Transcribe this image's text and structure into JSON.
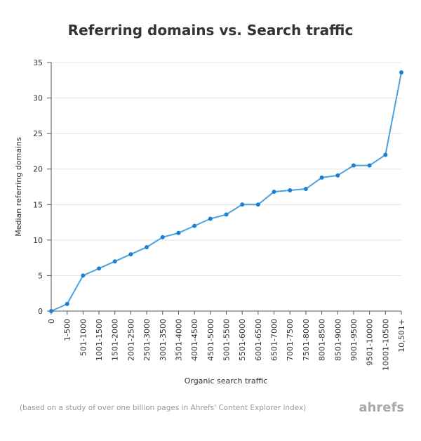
{
  "chart_data": {
    "type": "line",
    "title": "Referring domains vs. Search traffic",
    "x_label": "Organic search traffic",
    "y_label": "Median referring domains",
    "note": "(based on a study of over one billion pages in Ahrefs' Content Explorer index)",
    "brand": "ahrefs",
    "categories": [
      "0",
      "1-500",
      "501-1000",
      "1001-1500",
      "1501-2000",
      "2001-2500",
      "2501-3000",
      "3001-3500",
      "3501-4000",
      "4001-4500",
      "4501-5000",
      "5001-5500",
      "5501-6000",
      "6001-6500",
      "6501-7000",
      "7001-7500",
      "7501-8000",
      "8001-8500",
      "8501-9000",
      "9001-9500",
      "9501-10000",
      "10001-10500",
      "10,501+"
    ],
    "series": [
      {
        "color": "#4aa3df",
        "marker_color": "#1b7fd3",
        "values": [
          0,
          1,
          5,
          6,
          7,
          8,
          9,
          10.4,
          11,
          12,
          13,
          13.6,
          15,
          15,
          16.8,
          17,
          17.2,
          18.8,
          19.1,
          20.5,
          20.5,
          22,
          33.6
        ]
      }
    ],
    "ylim": [
      0,
      35
    ],
    "yticks": [
      0,
      5,
      10,
      15,
      20,
      25,
      30,
      35
    ],
    "grid": true
  }
}
